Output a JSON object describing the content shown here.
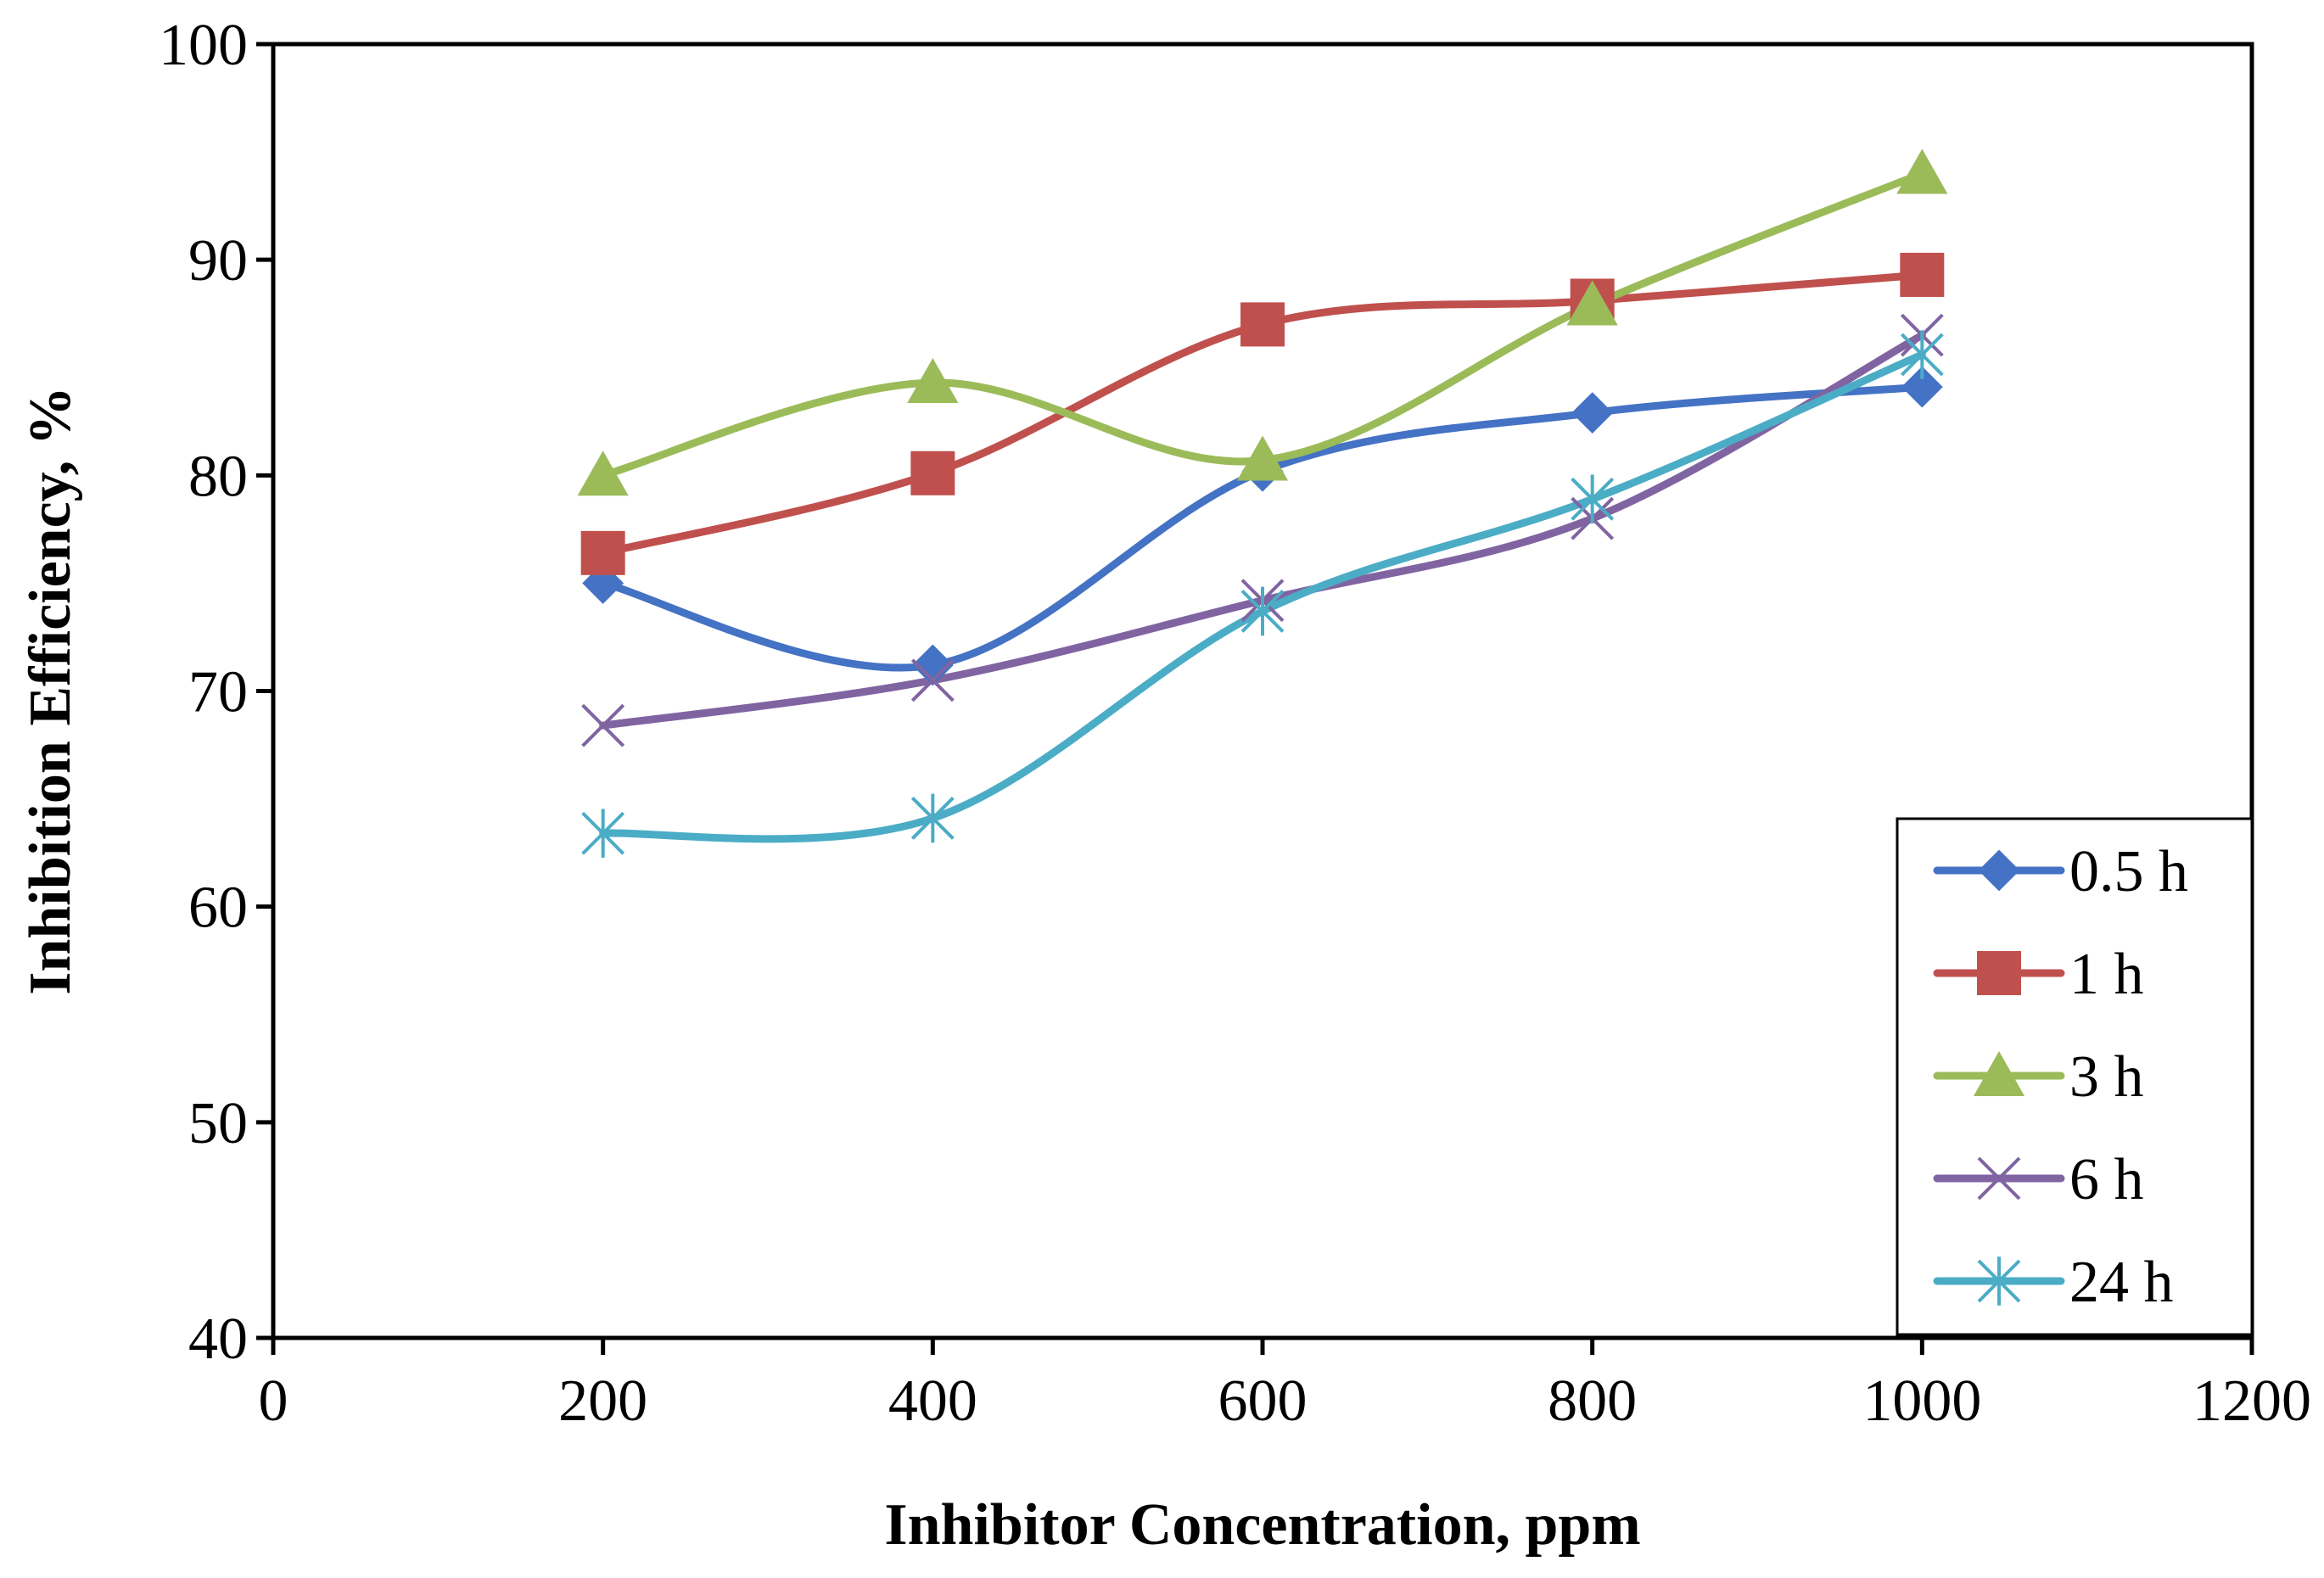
{
  "chart_data": {
    "type": "line",
    "title": "",
    "xlabel": "Inhibitor Concentration, ppm",
    "ylabel": "Inhibition Efficiency, %",
    "xlim": [
      0,
      1200
    ],
    "ylim": [
      40,
      100
    ],
    "xticks": [
      0,
      200,
      400,
      600,
      800,
      1000,
      1200
    ],
    "yticks": [
      40,
      50,
      60,
      70,
      80,
      90,
      100
    ],
    "grid": false,
    "smooth": true,
    "legend_position": "bottom-right",
    "x": [
      200,
      400,
      600,
      800,
      1000
    ],
    "series": [
      {
        "name": "0.5 h",
        "marker": "diamond",
        "color": "#4472C4",
        "values": [
          75.0,
          71.2,
          80.2,
          82.9,
          84.1
        ]
      },
      {
        "name": "1 h",
        "marker": "square",
        "color": "#C0504D",
        "values": [
          76.4,
          80.1,
          87.0,
          88.1,
          89.3
        ]
      },
      {
        "name": "3 h",
        "marker": "triangle",
        "color": "#9BBB59",
        "values": [
          80.0,
          84.3,
          80.7,
          87.9,
          94.0
        ]
      },
      {
        "name": "6 h",
        "marker": "x",
        "color": "#8064A2",
        "values": [
          68.4,
          70.5,
          74.2,
          78.0,
          86.5
        ]
      },
      {
        "name": "24 h",
        "marker": "asterisk",
        "color": "#4BACC6",
        "values": [
          63.4,
          64.1,
          73.7,
          78.9,
          85.6
        ]
      }
    ]
  }
}
